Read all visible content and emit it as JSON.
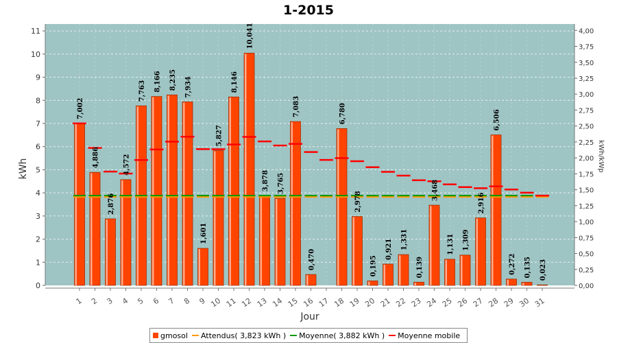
{
  "chart_data": {
    "type": "bar",
    "title": "1-2015",
    "xlabel": "Jour",
    "ylabel": "kWh",
    "ylabel_right": "kWh/kWp",
    "ylim": [
      0,
      11.3
    ],
    "ylim_right": [
      0,
      4.1
    ],
    "yticks": [
      "0",
      "1",
      "2",
      "3",
      "4",
      "5",
      "6",
      "7",
      "8",
      "9",
      "10",
      "11"
    ],
    "yticks_right": [
      "0,00",
      "0,25",
      "0,50",
      "0,75",
      "1,00",
      "1,25",
      "1,50",
      "1,75",
      "2,00",
      "2,25",
      "2,50",
      "2,75",
      "3,00",
      "3,25",
      "3,50",
      "3,75",
      "4,00"
    ],
    "categories": [
      "1",
      "2",
      "3",
      "4",
      "5",
      "6",
      "7",
      "8",
      "9",
      "10",
      "11",
      "12",
      "13",
      "14",
      "15",
      "16",
      "17",
      "18",
      "19",
      "20",
      "21",
      "22",
      "23",
      "24",
      "25",
      "26",
      "27",
      "28",
      "29",
      "30",
      "31"
    ],
    "series": [
      {
        "name": "gmosol",
        "color": "#ff4400",
        "values": [
          7.002,
          4.886,
          2.876,
          4.572,
          7.763,
          8.166,
          8.235,
          7.934,
          1.601,
          5.827,
          8.146,
          10.041,
          3.878,
          3.765,
          7.083,
          0.47,
          0,
          6.78,
          2.978,
          0.195,
          0.921,
          1.331,
          0.139,
          3.468,
          1.131,
          1.309,
          2.916,
          6.506,
          0.272,
          0.135,
          0.023
        ],
        "labels": [
          "7,002",
          "4,886",
          "2,876",
          "4,572",
          "7,763",
          "8,166",
          "8,235",
          "7,934",
          "1,601",
          "5,827",
          "8,146",
          "10,041",
          "3,878",
          "3,765",
          "7,083",
          "0,470",
          "",
          "6,780",
          "2,978",
          "0,195",
          "0,921",
          "1,331",
          "0,139",
          "3,468",
          "1,131",
          "1,309",
          "2,916",
          "6,506",
          "0,272",
          "0,135",
          "0,023"
        ]
      },
      {
        "name": "Attendus( 3,823 kWh )",
        "color": "#ff9900",
        "value": 3.823
      },
      {
        "name": "Moyenne( 3,882 kWh )",
        "color": "#009900",
        "value": 3.882
      },
      {
        "name": "Moyenne mobile",
        "color": "#ff0000",
        "values": [
          7.002,
          5.944,
          4.921,
          4.834,
          5.42,
          5.877,
          6.213,
          6.428,
          5.892,
          5.886,
          6.091,
          6.42,
          6.224,
          6.048,
          6.117,
          5.764,
          5.425,
          5.5,
          5.367,
          5.108,
          4.909,
          4.746,
          4.546,
          4.501,
          4.366,
          4.249,
          4.199,
          4.281,
          4.143,
          4.009,
          3.882
        ]
      }
    ],
    "legend": "bottom",
    "grid": true,
    "plot_background": "#9fc4c4"
  }
}
